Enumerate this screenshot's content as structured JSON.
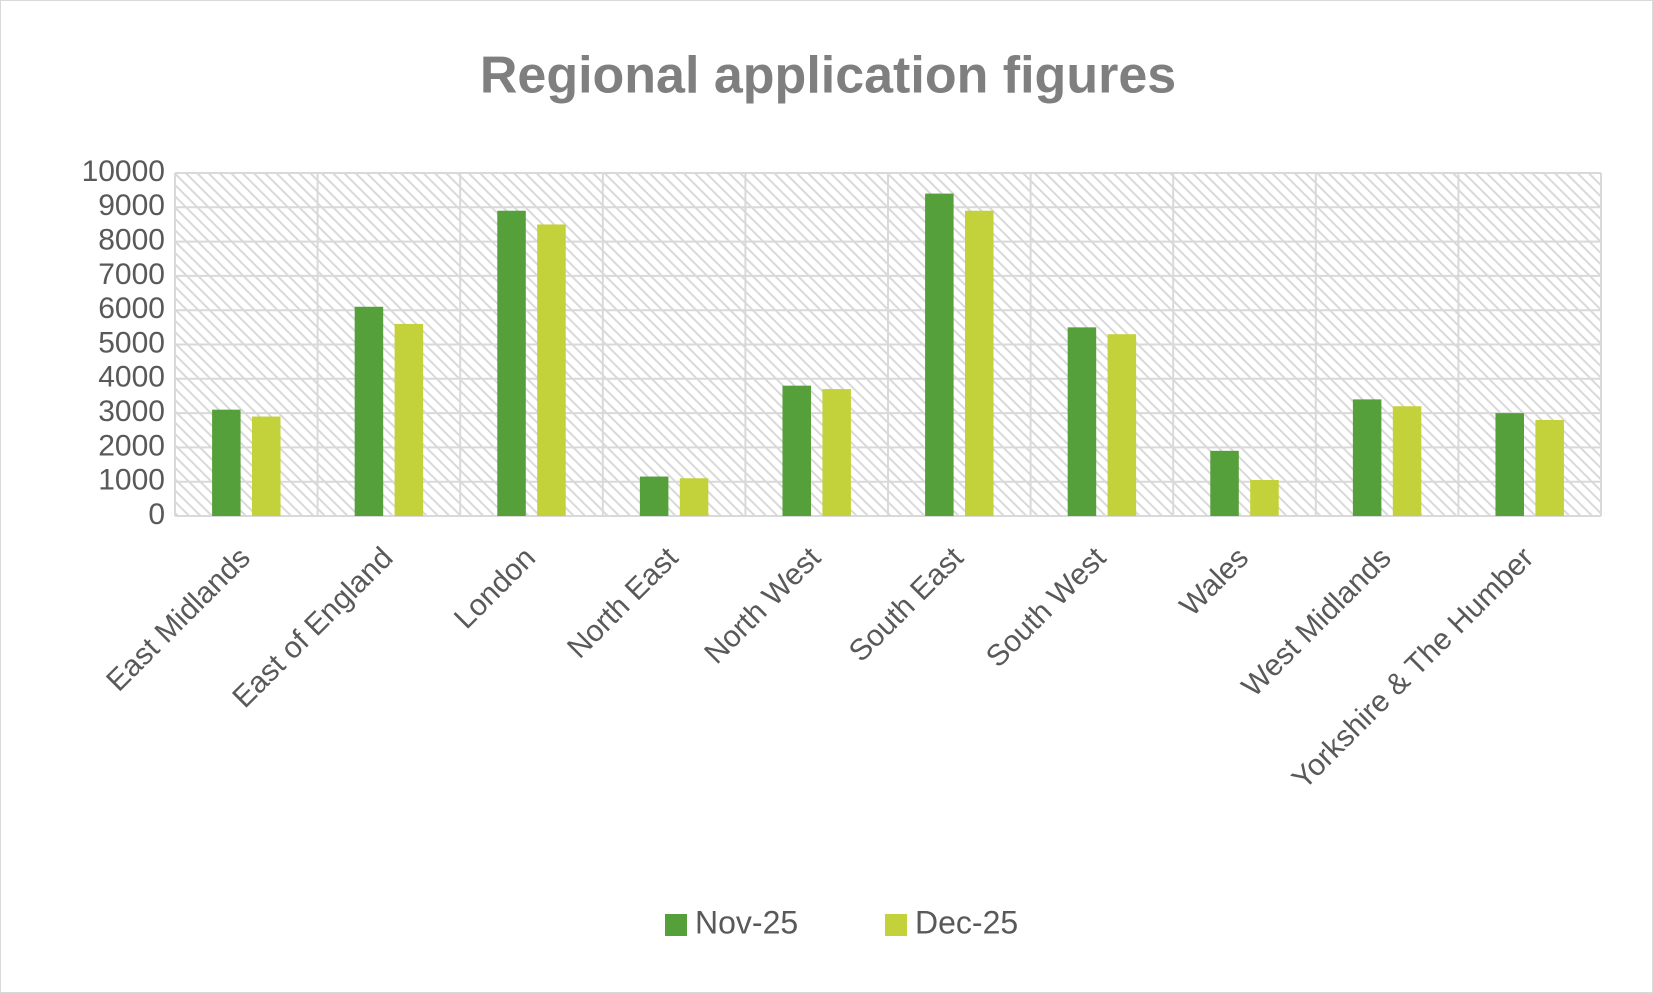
{
  "chart_data": {
    "type": "bar",
    "title": "Regional application figures",
    "categories": [
      "East Midlands",
      "East of England",
      "London",
      "North East",
      "North West",
      "South East",
      "South West",
      "Wales",
      "West Midlands",
      "Yorkshire & The Humber"
    ],
    "series": [
      {
        "name": "Nov-25",
        "color": "#55a03a",
        "values": [
          3100,
          6100,
          8900,
          1150,
          3800,
          9400,
          5500,
          1900,
          3400,
          3000
        ]
      },
      {
        "name": "Dec-25",
        "color": "#c3d13a",
        "values": [
          2900,
          5600,
          8500,
          1100,
          3700,
          8900,
          5300,
          1050,
          3200,
          2800
        ]
      }
    ],
    "ylim": [
      0,
      10000
    ],
    "yticks": [
      0,
      1000,
      2000,
      3000,
      4000,
      5000,
      6000,
      7000,
      8000,
      9000,
      10000
    ],
    "grid": true,
    "legend": "bottom"
  }
}
